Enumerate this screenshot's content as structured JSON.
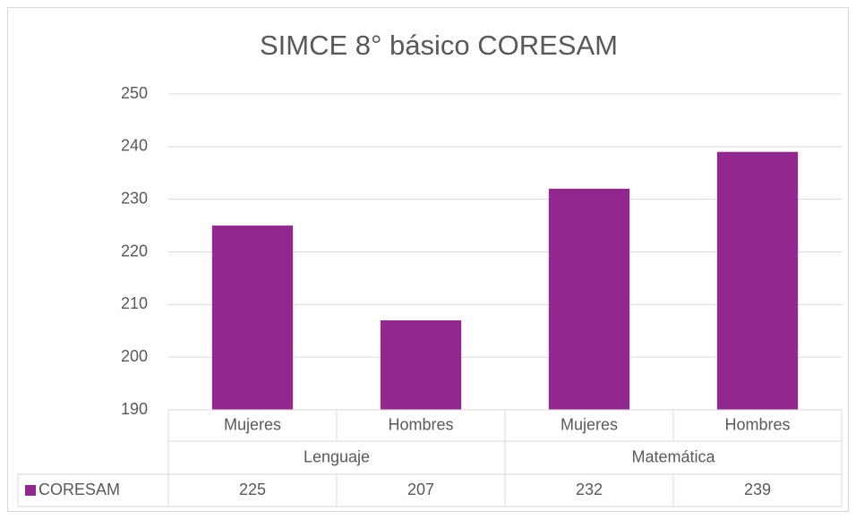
{
  "chart_data": {
    "type": "bar",
    "title": "SIMCE 8° básico CORESAM",
    "categories": [
      "Mujeres",
      "Hombres",
      "Mujeres",
      "Hombres"
    ],
    "groups": [
      {
        "name": "Lenguaje",
        "count": 2
      },
      {
        "name": "Matemática",
        "count": 2
      }
    ],
    "series": [
      {
        "name": "CORESAM",
        "color": "#92278f",
        "values": [
          225,
          207,
          232,
          239
        ]
      }
    ],
    "ylim": [
      190,
      250
    ],
    "yticks": [
      190,
      200,
      210,
      220,
      230,
      240,
      250
    ],
    "grid": true,
    "data_table": true
  }
}
